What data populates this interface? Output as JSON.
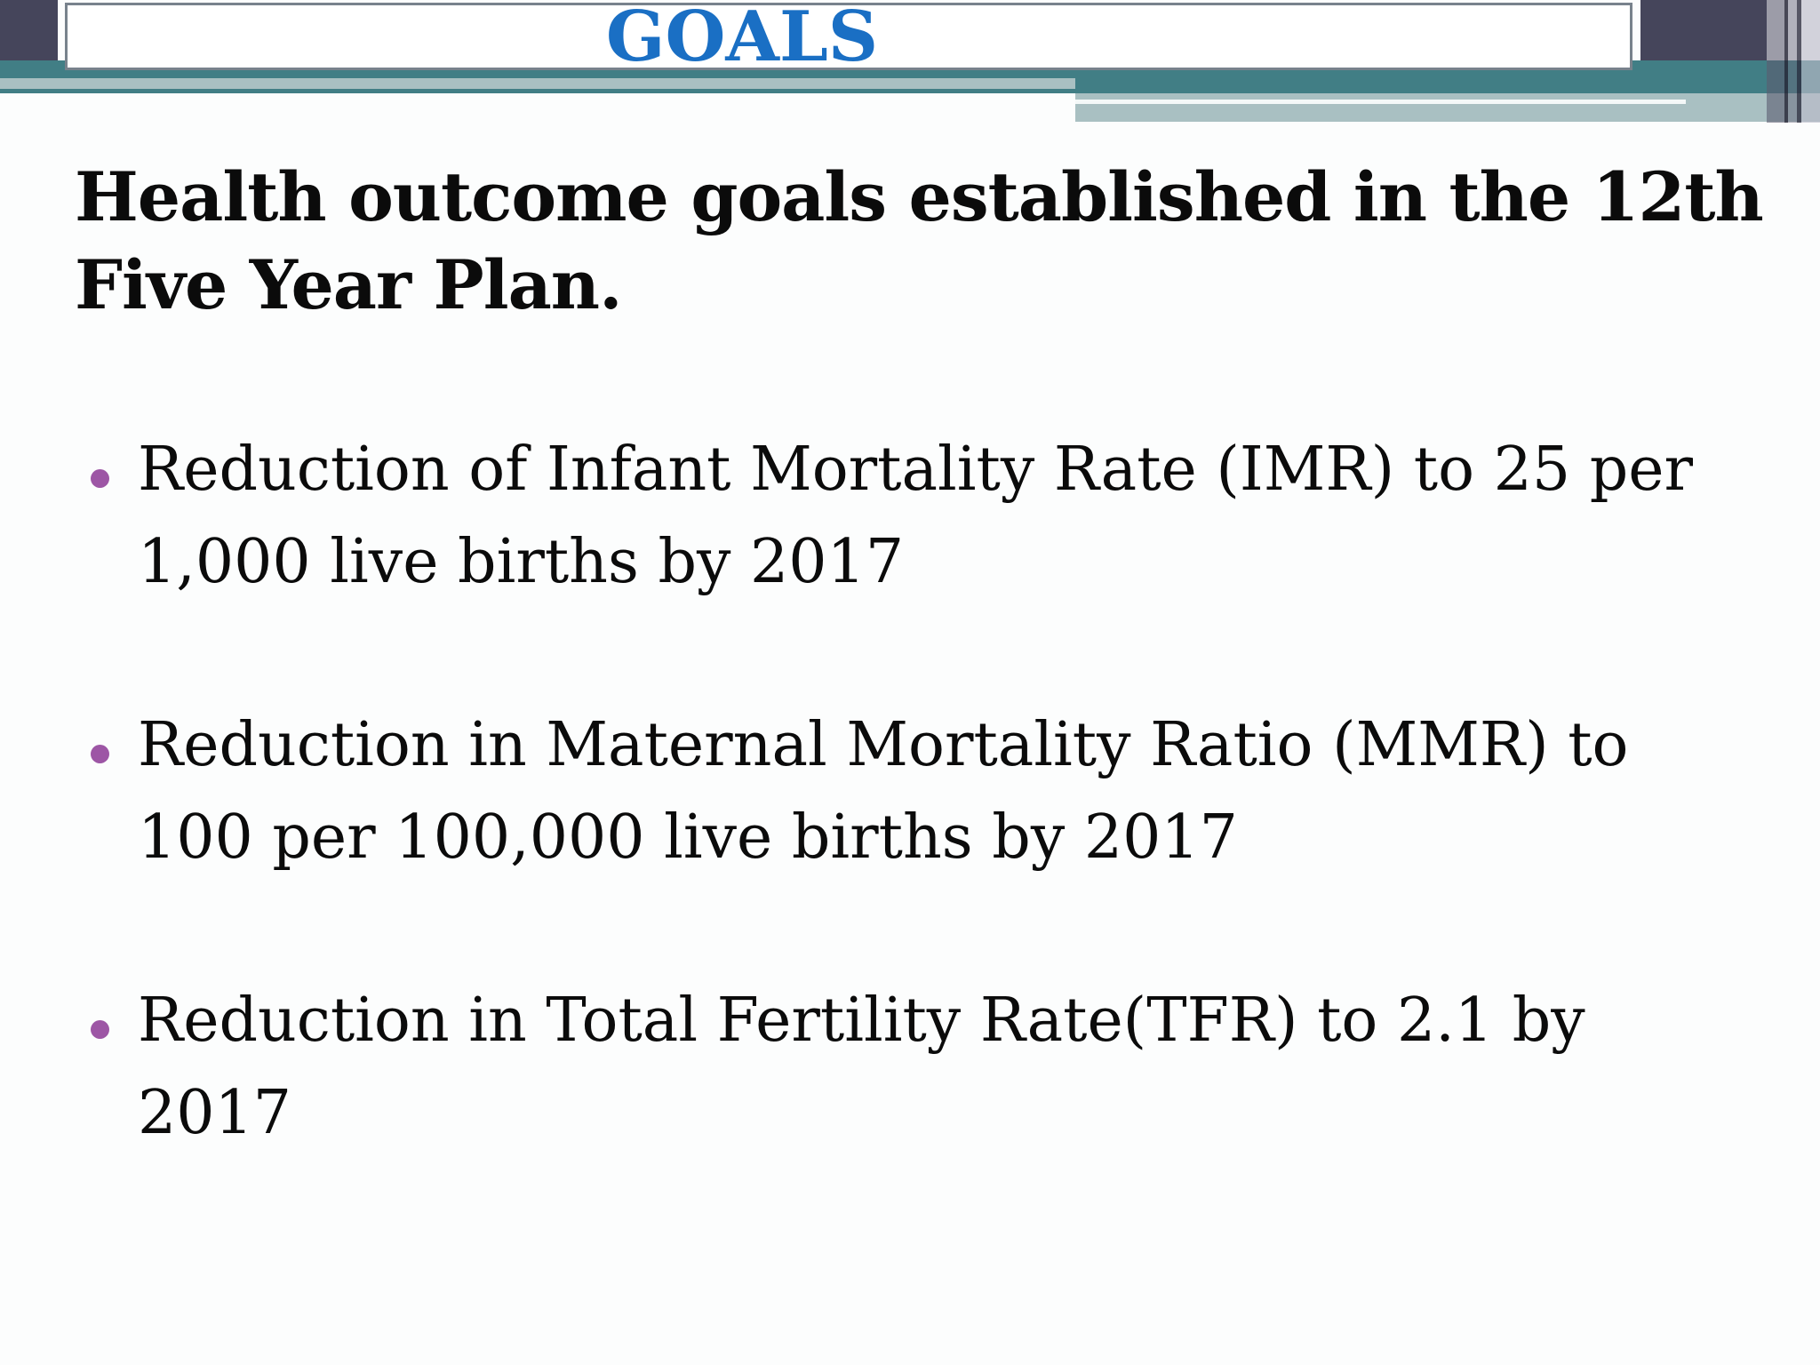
{
  "slide": {
    "title": "GOALS",
    "heading": "Health outcome goals established in the 12th\nFive Year Plan.",
    "bullets": [
      "Reduction of Infant Mortality Rate (IMR) to 25 per\n1,000 live births by 2017",
      "Reduction in Maternal Mortality Ratio (MMR) to\n100 per 100,000 live births by 2017",
      "Reduction in Total Fertility Rate(TFR) to 2.1 by\n2017"
    ],
    "colors": {
      "title_text": "#1a6fc4",
      "bullet_dot": "#9d56a5",
      "teal_dark": "#417e85",
      "teal_light": "#a9c0c2",
      "highlight_stripe": "#f4f8f8",
      "slate_dark": "#45455b",
      "background": "#fcfdfd"
    }
  }
}
